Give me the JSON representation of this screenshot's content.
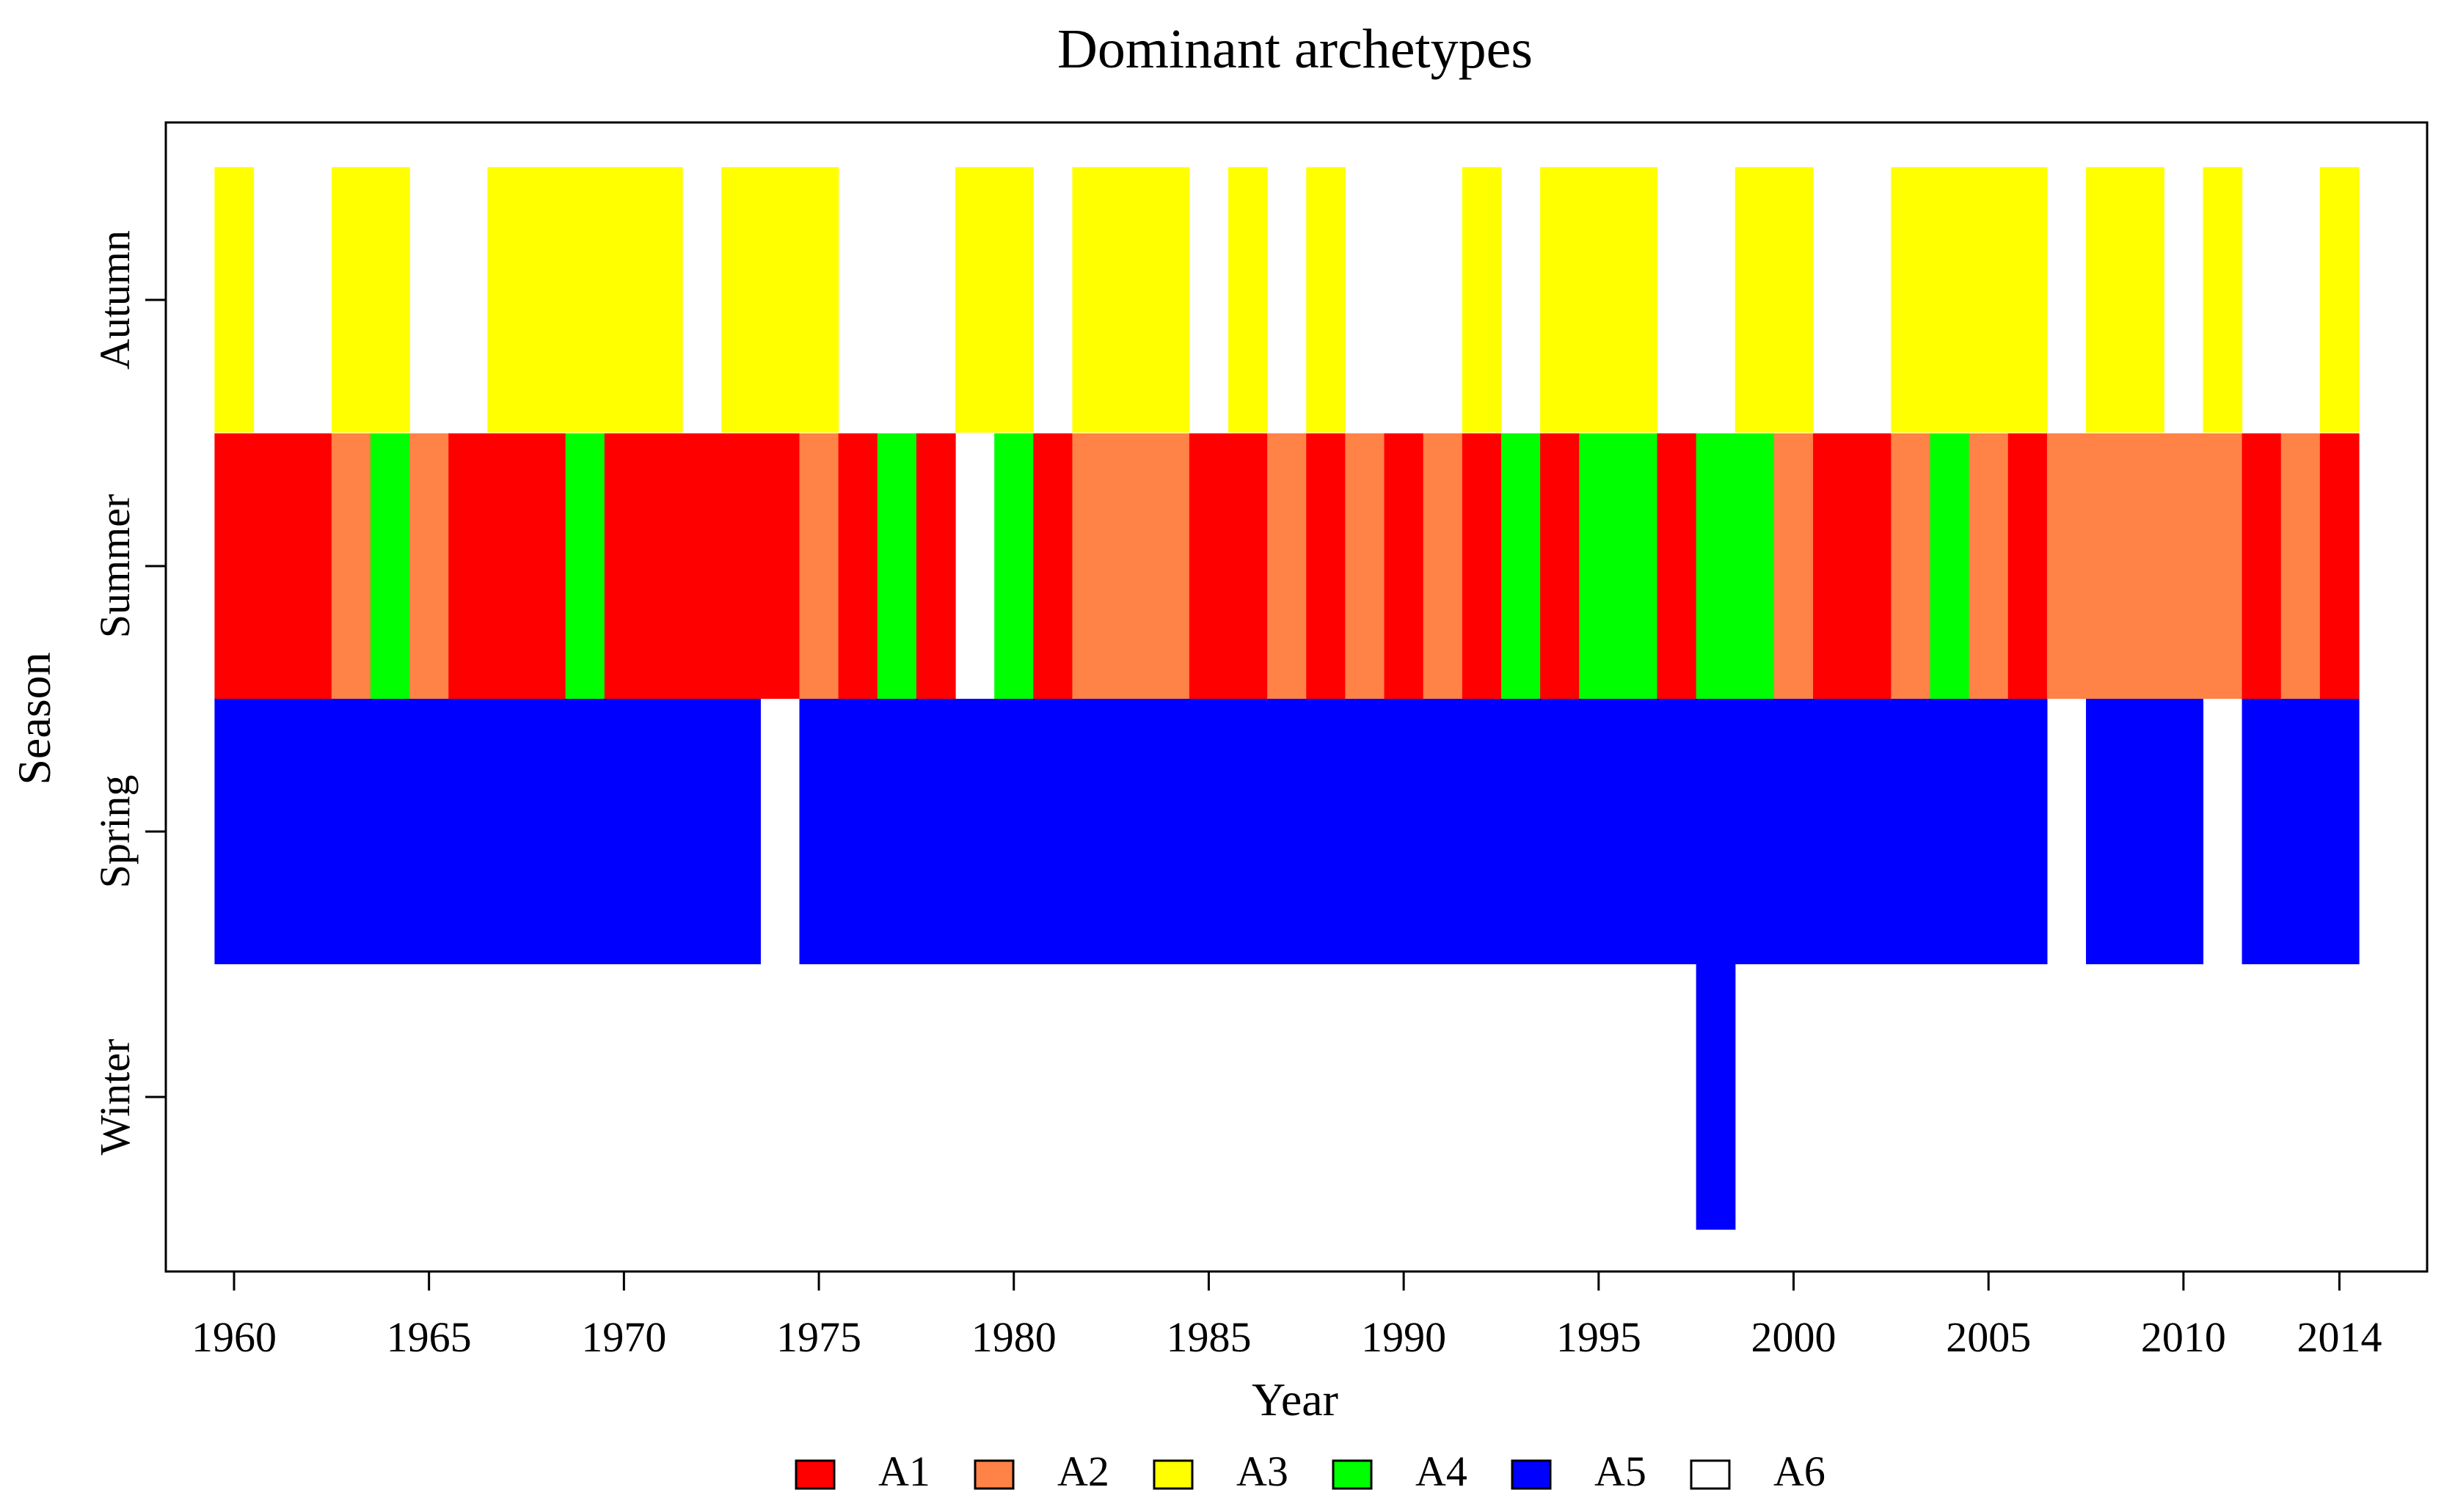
{
  "chart_data": {
    "type": "heatmap",
    "title": "Dominant archetypes",
    "xlabel": "Year",
    "ylabel": "Season",
    "xlim": [
      1958.25,
      2016.25
    ],
    "x_ticks": [
      1960,
      1965,
      1970,
      1975,
      1980,
      1985,
      1990,
      1995,
      2000,
      2005,
      2010,
      2014
    ],
    "x_tick_labels": [
      "1960",
      "1965",
      "1970",
      "1975",
      "1980",
      "1985",
      "1990",
      "1995",
      "2000",
      "2005",
      "2010",
      "2014"
    ],
    "seasons": [
      "Winter",
      "Spring",
      "Summer",
      "Autumn"
    ],
    "years": [
      1960,
      1961,
      1962,
      1963,
      1964,
      1965,
      1966,
      1967,
      1968,
      1969,
      1970,
      1971,
      1972,
      1973,
      1974,
      1975,
      1976,
      1977,
      1978,
      1979,
      1980,
      1981,
      1982,
      1983,
      1984,
      1985,
      1986,
      1987,
      1988,
      1989,
      1990,
      1991,
      1992,
      1993,
      1994,
      1995,
      1996,
      1997,
      1998,
      1999,
      2000,
      2001,
      2002,
      2003,
      2004,
      2005,
      2006,
      2007,
      2008,
      2009,
      2010,
      2011,
      2012,
      2013,
      2014
    ],
    "archetypes": [
      {
        "name": "A1",
        "color": "#ff0000"
      },
      {
        "name": "A2",
        "color": "#ff8247"
      },
      {
        "name": "A3",
        "color": "#ffff00"
      },
      {
        "name": "A4",
        "color": "#00ff00"
      },
      {
        "name": "A5",
        "color": "#0000ff"
      },
      {
        "name": "A6",
        "color": "#ffffff"
      }
    ],
    "series": [
      {
        "name": "Winter",
        "values": [
          "A6",
          "A6",
          "A6",
          "A6",
          "A6",
          "A6",
          "A6",
          "A6",
          "A6",
          "A6",
          "A6",
          "A6",
          "A6",
          "A6",
          "A6",
          "A6",
          "A6",
          "A6",
          "A6",
          "A6",
          "A6",
          "A6",
          "A6",
          "A6",
          "A6",
          "A6",
          "A6",
          "A6",
          "A6",
          "A6",
          "A6",
          "A6",
          "A6",
          "A6",
          "A6",
          "A6",
          "A6",
          "A6",
          "A5",
          "A6",
          "A6",
          "A6",
          "A6",
          "A6",
          "A6",
          "A6",
          "A6",
          "A6",
          "A6",
          "A6",
          "A6",
          "A6",
          "A6",
          "A6",
          "A6"
        ]
      },
      {
        "name": "Spring",
        "values": [
          "A5",
          "A5",
          "A5",
          "A5",
          "A5",
          "A5",
          "A5",
          "A5",
          "A5",
          "A5",
          "A5",
          "A5",
          "A5",
          "A5",
          "A6",
          "A5",
          "A5",
          "A5",
          "A5",
          "A5",
          "A5",
          "A5",
          "A5",
          "A5",
          "A5",
          "A5",
          "A5",
          "A5",
          "A5",
          "A5",
          "A5",
          "A5",
          "A5",
          "A5",
          "A5",
          "A5",
          "A5",
          "A5",
          "A5",
          "A5",
          "A5",
          "A5",
          "A5",
          "A5",
          "A5",
          "A5",
          "A5",
          "A6",
          "A5",
          "A5",
          "A5",
          "A6",
          "A5",
          "A5",
          "A5"
        ]
      },
      {
        "name": "Summer",
        "values": [
          "A1",
          "A1",
          "A1",
          "A2",
          "A4",
          "A2",
          "A1",
          "A1",
          "A1",
          "A4",
          "A1",
          "A1",
          "A1",
          "A1",
          "A1",
          "A2",
          "A1",
          "A4",
          "A1",
          "A6",
          "A4",
          "A1",
          "A2",
          "A2",
          "A2",
          "A1",
          "A1",
          "A2",
          "A1",
          "A2",
          "A1",
          "A2",
          "A1",
          "A4",
          "A1",
          "A4",
          "A4",
          "A1",
          "A4",
          "A4",
          "A2",
          "A1",
          "A1",
          "A2",
          "A4",
          "A2",
          "A1",
          "A2",
          "A2",
          "A2",
          "A2",
          "A2",
          "A1",
          "A2",
          "A1"
        ]
      },
      {
        "name": "Autumn",
        "values": [
          "A3",
          "A6",
          "A6",
          "A3",
          "A3",
          "A6",
          "A6",
          "A3",
          "A3",
          "A3",
          "A3",
          "A3",
          "A6",
          "A3",
          "A3",
          "A3",
          "A6",
          "A6",
          "A6",
          "A3",
          "A3",
          "A6",
          "A3",
          "A3",
          "A3",
          "A6",
          "A3",
          "A6",
          "A3",
          "A6",
          "A6",
          "A6",
          "A3",
          "A6",
          "A3",
          "A3",
          "A3",
          "A6",
          "A6",
          "A3",
          "A3",
          "A6",
          "A6",
          "A3",
          "A3",
          "A3",
          "A3",
          "A6",
          "A3",
          "A3",
          "A6",
          "A3",
          "A6",
          "A6",
          "A3"
        ]
      }
    ],
    "legend_position": "bottom"
  }
}
